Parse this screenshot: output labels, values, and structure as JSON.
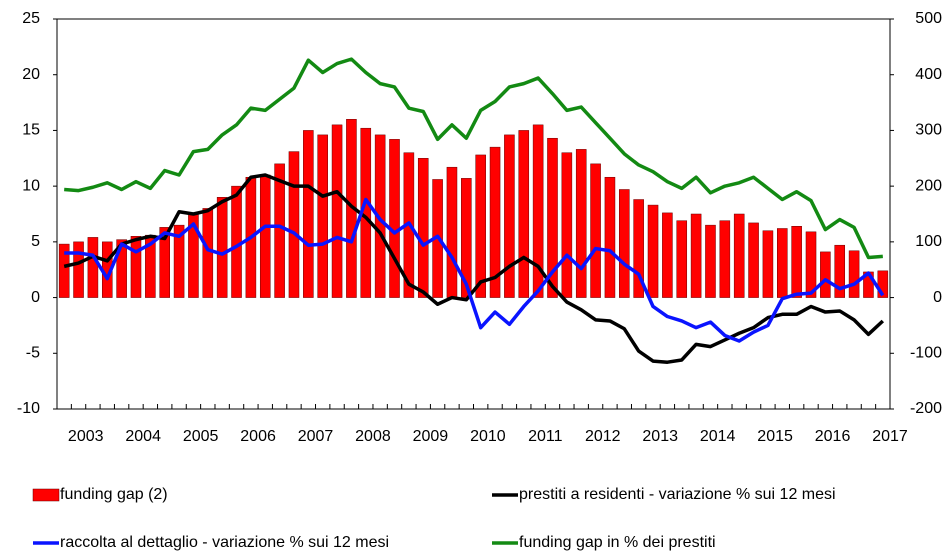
{
  "chart_data": {
    "type": "bar-line",
    "categories": [
      null,
      "2003",
      null,
      null,
      null,
      "2004",
      null,
      null,
      null,
      "2005",
      null,
      null,
      null,
      "2006",
      null,
      null,
      null,
      "2007",
      null,
      null,
      null,
      "2008",
      null,
      null,
      null,
      "2009",
      null,
      null,
      null,
      "2010",
      null,
      null,
      null,
      "2011",
      null,
      null,
      null,
      "2012",
      null,
      null,
      null,
      "2013",
      null,
      null,
      null,
      "2014",
      null,
      null,
      null,
      "2015",
      null,
      null,
      null,
      "2016",
      null,
      null,
      null,
      "2017"
    ],
    "ylim": [
      -10,
      25
    ],
    "yticks": [
      -10,
      -5,
      0,
      5,
      10,
      15,
      20,
      25
    ],
    "y2lim": [
      -200,
      500
    ],
    "y2ticks": [
      -200,
      -100,
      0,
      100,
      200,
      300,
      400,
      500
    ],
    "series": [
      {
        "name": "funding gap (2)",
        "type": "bar",
        "axis": "y2",
        "color": "#ff0000",
        "values": [
          96,
          100,
          108,
          100,
          104,
          110,
          112,
          126,
          130,
          150,
          160,
          180,
          200,
          216,
          220,
          240,
          262,
          300,
          292,
          310,
          320,
          304,
          292,
          284,
          260,
          250,
          212,
          234,
          214,
          256,
          270,
          292,
          300,
          310,
          286,
          260,
          266,
          240,
          216,
          194,
          176,
          166,
          152,
          138,
          150,
          130,
          138,
          150,
          134,
          120,
          124,
          128,
          118,
          82,
          94,
          84,
          46,
          48
        ]
      },
      {
        "name": "prestiti a residenti - variazione % sui 12 mesi",
        "type": "line",
        "color": "#000000",
        "values": [
          2.8,
          3.1,
          3.7,
          3.3,
          4.8,
          5.2,
          5.5,
          5.3,
          7.7,
          7.5,
          7.8,
          8.6,
          9.2,
          10.8,
          11.0,
          10.5,
          10.0,
          10.0,
          9.1,
          9.5,
          8.2,
          7.2,
          5.8,
          3.5,
          1.2,
          0.5,
          -0.6,
          0.0,
          -0.2,
          1.4,
          1.8,
          2.8,
          3.6,
          2.8,
          1.0,
          -0.4,
          -1.1,
          -2.0,
          -2.1,
          -2.8,
          -4.8,
          -5.7,
          -5.8,
          -5.6,
          -4.2,
          -4.4,
          -3.8,
          -3.2,
          -2.7,
          -1.8,
          -1.5,
          -1.5,
          -0.8,
          -1.3,
          -1.2,
          -2.0,
          -3.3,
          -2.1
        ]
      },
      {
        "name": "raccolta al dettaglio - variazione % sui 12 mesi",
        "type": "line",
        "color": "#0a14ff",
        "values": [
          4.0,
          4.0,
          3.8,
          1.7,
          4.8,
          4.1,
          4.8,
          5.8,
          5.5,
          6.6,
          4.3,
          3.9,
          4.6,
          5.4,
          6.4,
          6.4,
          5.8,
          4.7,
          4.8,
          5.4,
          5.0,
          8.8,
          7.0,
          5.8,
          6.7,
          4.7,
          5.5,
          3.6,
          1.2,
          -2.7,
          -1.3,
          -2.4,
          -0.8,
          0.6,
          2.3,
          3.8,
          2.6,
          4.4,
          4.2,
          3.0,
          2.1,
          -0.8,
          -1.7,
          -2.1,
          -2.7,
          -2.2,
          -3.4,
          -3.9,
          -3.1,
          -2.5,
          -0.1,
          0.3,
          0.4,
          1.6,
          0.8,
          1.2,
          2.2,
          0.2
        ]
      },
      {
        "name": "funding gap in % dei prestiti",
        "type": "line",
        "color": "#138a13",
        "values": [
          9.7,
          9.6,
          9.9,
          10.3,
          9.7,
          10.4,
          9.8,
          11.4,
          11.0,
          13.1,
          13.3,
          14.6,
          15.5,
          17.0,
          16.8,
          17.8,
          18.8,
          21.3,
          20.2,
          21.0,
          21.4,
          20.2,
          19.2,
          18.9,
          17.0,
          16.7,
          14.2,
          15.5,
          14.3,
          16.8,
          17.6,
          18.9,
          19.2,
          19.7,
          18.3,
          16.8,
          17.1,
          15.7,
          14.3,
          12.9,
          11.9,
          11.3,
          10.4,
          9.8,
          10.8,
          9.4,
          10.0,
          10.3,
          10.8,
          9.8,
          8.8,
          9.5,
          8.7,
          6.1,
          7.0,
          6.3,
          3.6,
          3.7
        ]
      }
    ]
  }
}
